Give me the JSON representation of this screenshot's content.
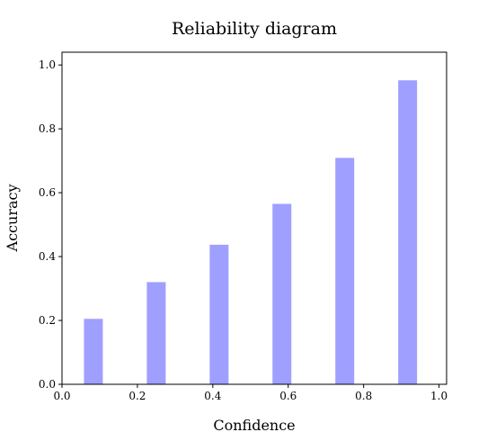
{
  "chart_data": {
    "type": "bar",
    "title": "Reliability diagram",
    "xlabel": "Confidence",
    "ylabel": "Accuracy",
    "xlim": [
      0.0,
      1.02
    ],
    "ylim": [
      0.0,
      1.04
    ],
    "x_ticks": [
      "0.0",
      "0.2",
      "0.4",
      "0.6",
      "0.8",
      "1.0"
    ],
    "y_ticks": [
      "0.0",
      "0.2",
      "0.4",
      "0.6",
      "0.8",
      "1.0"
    ],
    "bar_width": 0.05,
    "x": [
      0.0833,
      0.25,
      0.4167,
      0.5833,
      0.75,
      0.9167
    ],
    "values": [
      0.205,
      0.32,
      0.437,
      0.565,
      0.709,
      0.952
    ],
    "bar_color": "#9f9fff",
    "grid": false,
    "legend": "none"
  }
}
